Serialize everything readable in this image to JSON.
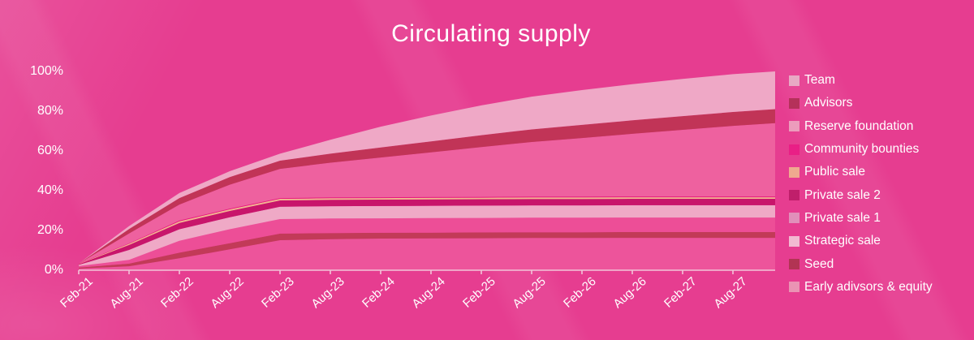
{
  "title": "Circulating supply",
  "colors": {
    "background": "#E63D90",
    "axis_line": "#F2C4D8",
    "text": "#FFFFFF"
  },
  "chart_data": {
    "type": "area",
    "stacked": true,
    "title": "Circulating supply",
    "xlabel": "",
    "ylabel": "",
    "ylim": [
      0,
      100
    ],
    "grid": false,
    "legend_position": "right",
    "y_tick_labels": [
      "0%",
      "20%",
      "40%",
      "60%",
      "80%",
      "100%"
    ],
    "y_tick_values": [
      0,
      20,
      40,
      60,
      80,
      100
    ],
    "x_labels": [
      "Feb-21",
      "Aug-21",
      "Feb-22",
      "Aug-22",
      "Feb-23",
      "Aug-23",
      "Feb-24",
      "Aug-24",
      "Feb-25",
      "Aug-25",
      "Feb-26",
      "Aug-26",
      "Feb-27",
      "Aug-27"
    ],
    "note": "values arrays have 15 points: one per x label plus an unlabeled end point where the area reaches 100%; series listed top-of-stack first (legend order), stacking order is bottom-up from the last entry",
    "series": [
      {
        "name": "Team",
        "chart_color": "#EFA8C6",
        "legend_color": "#E8A9C4",
        "values": [
          0.0,
          1.5,
          2.5,
          3.0,
          3.5,
          7.0,
          10.5,
          13.0,
          15.0,
          16.5,
          17.5,
          18.2,
          18.7,
          19.0,
          19.0
        ]
      },
      {
        "name": "Advisors",
        "chart_color": "#C13457",
        "legend_color": "#B5315A",
        "values": [
          0.0,
          2.2,
          3.3,
          3.8,
          4.1,
          4.5,
          5.0,
          5.5,
          6.0,
          6.3,
          6.6,
          6.8,
          6.9,
          7.0,
          7.0
        ]
      },
      {
        "name": "Reserve foundation",
        "chart_color": "#EE619F",
        "legend_color": "#EC9CBC",
        "values": [
          0.0,
          5.0,
          8.0,
          12.0,
          14.7,
          17.5,
          20.0,
          22.5,
          25.0,
          27.5,
          29.5,
          31.5,
          33.5,
          35.5,
          36.9
        ]
      },
      {
        "name": "Community bounties",
        "chart_color": "#E7177F",
        "legend_color": "#E91F86",
        "values": [
          0.1,
          0.2,
          0.4,
          0.4,
          0.4,
          0.4,
          0.4,
          0.4,
          0.4,
          0.4,
          0.4,
          0.4,
          0.4,
          0.4,
          0.4
        ]
      },
      {
        "name": "Public sale",
        "chart_color": "#F2B491",
        "legend_color": "#EFA98F",
        "values": [
          0.2,
          0.6,
          0.8,
          0.8,
          0.8,
          0.8,
          0.8,
          0.8,
          0.8,
          0.8,
          0.8,
          0.8,
          0.8,
          0.8,
          0.8
        ]
      },
      {
        "name": "Private sale 2",
        "chart_color": "#C8156B",
        "legend_color": "#C01F6B",
        "values": [
          0.3,
          2.5,
          3.2,
          3.2,
          3.2,
          3.2,
          3.2,
          3.2,
          3.2,
          3.2,
          3.2,
          3.2,
          3.2,
          3.2,
          3.2
        ]
      },
      {
        "name": "Private sale 1",
        "chart_color": "#EFA9C6",
        "legend_color": "#E18FBA",
        "values": [
          0.6,
          5.0,
          5.8,
          6.0,
          6.2,
          6.2,
          6.2,
          6.2,
          6.2,
          6.2,
          6.2,
          6.2,
          6.2,
          6.2,
          6.2
        ]
      },
      {
        "name": "Strategic sale",
        "chart_color": "#ED4E97",
        "legend_color": "#F2B9D1",
        "values": [
          0.8,
          1.9,
          6.0,
          7.0,
          7.3,
          7.3,
          7.3,
          7.3,
          7.3,
          7.3,
          7.3,
          7.3,
          7.3,
          7.3,
          7.3
        ]
      },
      {
        "name": "Seed",
        "chart_color": "#C23A58",
        "legend_color": "#B23453",
        "values": [
          0.5,
          1.3,
          2.8,
          3.1,
          3.3,
          3.1,
          2.9,
          2.9,
          2.9,
          2.9,
          2.9,
          2.9,
          2.9,
          2.9,
          2.9
        ]
      },
      {
        "name": "Early adivsors & equity",
        "chart_color": "#ED549B",
        "legend_color": "#EA93B4",
        "values": [
          0.8,
          2.0,
          6.0,
          10.5,
          15.1,
          15.6,
          15.9,
          16.0,
          16.1,
          16.2,
          16.2,
          16.3,
          16.3,
          16.3,
          16.3
        ]
      }
    ]
  }
}
